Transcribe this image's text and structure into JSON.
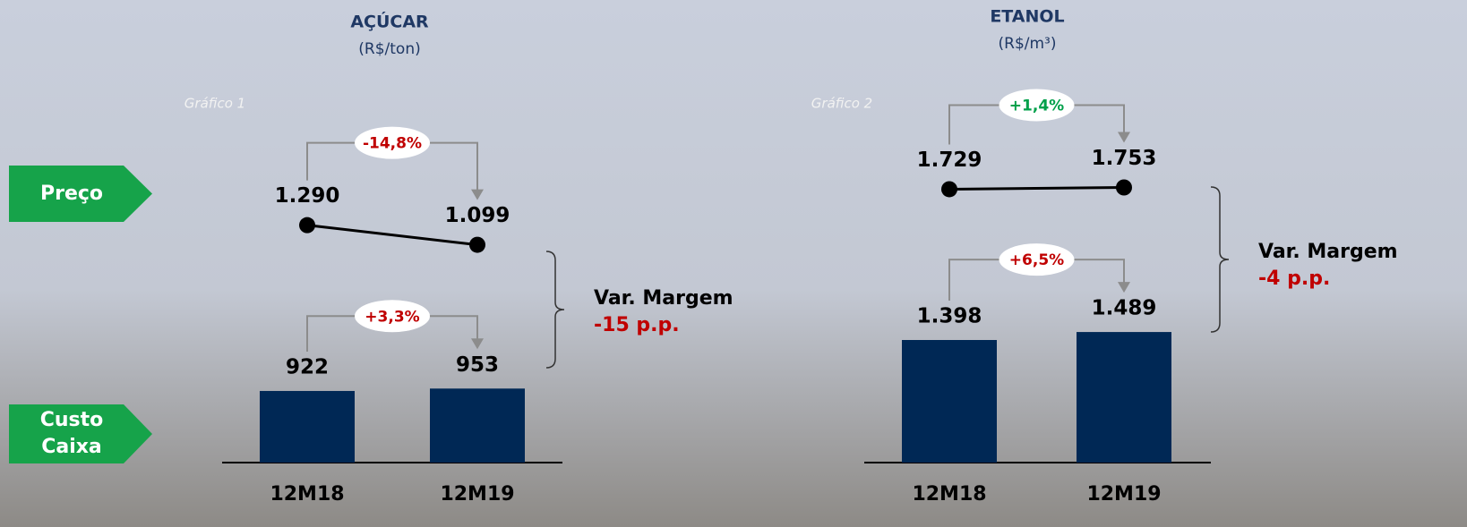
{
  "labels": {
    "price": "Preço",
    "cost": "Custo Caixa"
  },
  "chart_data": [
    {
      "type": "combo",
      "title": "AÇÚCAR",
      "subtitle": "(R$/ton)",
      "caption": "Gráfico 1",
      "categories": [
        "12M18",
        "12M19"
      ],
      "series": [
        {
          "type": "line",
          "color": "#000000",
          "values": [
            1290,
            1099
          ],
          "value_labels": [
            "1.290",
            "1.099"
          ]
        },
        {
          "type": "bar",
          "color": "#002855",
          "values": [
            922,
            953
          ],
          "value_labels": [
            "922",
            "953"
          ]
        }
      ],
      "annotations": {
        "price_change": "-14,8%",
        "price_change_color": "#c00000",
        "cost_change": "+3,3%",
        "cost_change_color": "#c00000",
        "margin_title": "Var. Margem",
        "margin_value": "-15 p.p.",
        "margin_color": "#c00000"
      }
    },
    {
      "type": "combo",
      "title": "ETANOL",
      "subtitle": "(R$/m³)",
      "caption": "Gráfico 2",
      "categories": [
        "12M18",
        "12M19"
      ],
      "series": [
        {
          "type": "line",
          "color": "#000000",
          "values": [
            1729,
            1753
          ],
          "value_labels": [
            "1.729",
            "1.753"
          ]
        },
        {
          "type": "bar",
          "color": "#002855",
          "values": [
            1398,
            1489
          ],
          "value_labels": [
            "1.398",
            "1.489"
          ]
        }
      ],
      "annotations": {
        "price_change": "+1,4%",
        "price_change_color": "#00a04a",
        "cost_change": "+6,5%",
        "cost_change_color": "#c00000",
        "margin_title": "Var. Margem",
        "margin_value": "-4 p.p.",
        "margin_color": "#c00000"
      }
    }
  ]
}
